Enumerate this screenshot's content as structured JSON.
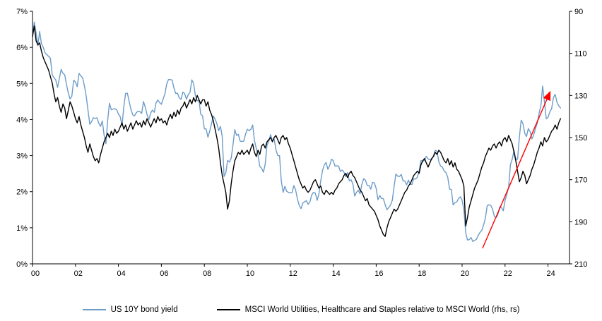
{
  "chart_data": {
    "type": "line",
    "title": "",
    "background": "#ffffff",
    "x_start_year": 2000,
    "x_step_years": 0.0833333,
    "x_axis": {
      "min": 2000,
      "max": 2025,
      "tick_values": [
        2000,
        2002,
        2004,
        2006,
        2008,
        2010,
        2012,
        2014,
        2016,
        2018,
        2020,
        2022,
        2024
      ],
      "tick_labels": [
        "00",
        "02",
        "04",
        "06",
        "08",
        "10",
        "12",
        "14",
        "16",
        "18",
        "20",
        "22",
        "24"
      ]
    },
    "left_axis": {
      "min": 0,
      "max": 7,
      "tick_values": [
        0,
        1,
        2,
        3,
        4,
        5,
        6,
        7
      ],
      "tick_labels": [
        "0%",
        "1%",
        "2%",
        "3%",
        "4%",
        "5%",
        "6%",
        "7%"
      ]
    },
    "right_axis": {
      "min": 90,
      "max": 210,
      "reversed": true,
      "tick_values": [
        90,
        110,
        130,
        150,
        170,
        190,
        210
      ],
      "tick_labels": [
        "90",
        "110",
        "130",
        "150",
        "170",
        "190",
        "210"
      ]
    },
    "series": [
      {
        "name": "US 10Y bond yield",
        "axis": "left",
        "color": "#6d9cc9",
        "values": [
          6.3,
          6.7,
          6.4,
          6.05,
          6.44,
          6.1,
          6.0,
          5.85,
          5.8,
          5.75,
          5.7,
          5.24,
          5.16,
          5.1,
          4.89,
          5.14,
          5.39,
          5.28,
          5.24,
          4.97,
          4.73,
          4.57,
          4.65,
          5.09,
          5.04,
          4.91,
          5.28,
          5.21,
          5.16,
          4.93,
          4.65,
          4.26,
          3.87,
          3.94,
          4.05,
          4.03,
          4.05,
          3.9,
          3.81,
          3.96,
          3.57,
          3.33,
          3.98,
          4.45,
          4.27,
          4.29,
          4.3,
          4.27,
          4.15,
          4.08,
          3.83,
          4.35,
          4.72,
          4.73,
          4.5,
          4.28,
          4.13,
          4.1,
          4.19,
          4.23,
          4.22,
          4.17,
          4.5,
          4.34,
          4.14,
          4.0,
          4.18,
          4.26,
          4.2,
          4.46,
          4.54,
          4.47,
          4.42,
          4.57,
          4.72,
          4.99,
          5.11,
          5.11,
          5.09,
          4.88,
          4.72,
          4.73,
          4.6,
          4.56,
          4.76,
          4.72,
          4.56,
          4.69,
          4.75,
          5.1,
          5.0,
          4.67,
          4.52,
          4.53,
          4.15,
          4.1,
          3.74,
          3.74,
          3.51,
          3.68,
          3.88,
          4.1,
          4.01,
          3.89,
          3.69,
          3.81,
          3.53,
          2.42,
          2.52,
          2.87,
          2.82,
          2.93,
          3.29,
          3.72,
          3.56,
          3.59,
          3.4,
          3.39,
          3.4,
          3.59,
          3.73,
          3.69,
          3.73,
          3.85,
          3.42,
          3.2,
          3.01,
          2.7,
          2.65,
          2.54,
          2.76,
          3.29,
          3.39,
          3.58,
          3.41,
          3.46,
          3.17,
          3.0,
          3.0,
          2.3,
          1.98,
          2.15,
          2.01,
          1.98,
          1.97,
          1.97,
          2.17,
          2.05,
          1.8,
          1.62,
          1.53,
          1.68,
          1.72,
          1.75,
          1.65,
          1.72,
          1.91,
          1.98,
          1.96,
          1.76,
          1.93,
          2.3,
          2.58,
          2.74,
          2.81,
          2.62,
          2.72,
          2.9,
          2.86,
          2.71,
          2.72,
          2.71,
          2.56,
          2.6,
          2.54,
          2.42,
          2.53,
          2.3,
          2.33,
          2.21,
          1.88,
          1.98,
          2.04,
          1.94,
          2.2,
          2.36,
          2.32,
          2.17,
          2.17,
          2.07,
          2.26,
          2.24,
          2.09,
          1.78,
          1.89,
          1.81,
          1.81,
          1.64,
          1.5,
          1.56,
          1.63,
          1.76,
          2.14,
          2.49,
          2.43,
          2.42,
          2.48,
          2.3,
          2.3,
          2.19,
          2.32,
          2.21,
          2.2,
          2.36,
          2.35,
          2.4,
          2.58,
          2.86,
          2.84,
          2.87,
          2.98,
          2.91,
          2.89,
          2.89,
          3.0,
          3.15,
          3.12,
          2.83,
          2.71,
          2.68,
          2.57,
          2.53,
          2.4,
          2.07,
          2.06,
          1.63,
          1.7,
          1.71,
          1.81,
          1.86,
          1.76,
          1.5,
          0.87,
          0.66,
          0.67,
          0.73,
          0.62,
          0.65,
          0.68,
          0.79,
          0.87,
          0.93,
          1.08,
          1.26,
          1.61,
          1.64,
          1.62,
          1.52,
          1.32,
          1.28,
          1.37,
          1.58,
          1.56,
          1.47,
          1.76,
          1.93,
          2.13,
          2.75,
          2.9,
          3.14,
          2.9,
          2.9,
          3.52,
          3.98,
          3.89,
          3.62,
          3.53,
          3.75,
          3.66,
          3.46,
          3.57,
          3.75,
          3.9,
          4.17,
          4.38,
          4.93,
          4.5,
          4.02,
          4.06,
          4.21,
          4.3,
          4.6,
          4.7,
          4.48,
          4.38,
          4.32
        ]
      },
      {
        "name": "MSCI World Utilities, Healthcare and Staples relative to MSCI World (rhs, rs)",
        "axis": "right",
        "color": "#000000",
        "values": [
          102,
          97,
          104,
          106,
          105,
          109,
          112,
          114,
          116,
          118,
          121,
          124,
          129,
          133,
          131,
          135,
          138,
          134,
          136,
          141,
          137,
          133,
          135,
          138,
          141,
          143,
          140,
          144,
          147,
          150,
          154,
          157,
          153,
          156,
          159,
          161,
          160,
          162,
          158,
          155,
          152,
          150,
          148,
          150,
          147,
          149,
          146,
          148,
          147,
          145,
          143,
          146,
          144,
          147,
          145,
          143,
          146,
          144,
          142,
          144,
          143,
          145,
          142,
          144,
          141,
          143,
          145,
          143,
          141,
          143,
          140,
          142,
          141,
          143,
          142,
          144,
          141,
          139,
          141,
          138,
          140,
          137,
          139,
          136,
          135,
          133,
          136,
          134,
          132,
          134,
          131,
          133,
          130,
          132,
          134,
          132,
          132,
          135,
          133,
          137,
          139,
          142,
          146,
          150,
          155,
          162,
          168,
          172,
          176,
          184,
          180,
          172,
          166,
          161,
          159,
          157,
          158,
          156,
          158,
          157,
          156,
          158,
          155,
          153,
          157,
          159,
          156,
          158,
          154,
          153,
          155,
          152,
          151,
          150,
          152,
          150,
          149,
          151,
          153,
          150,
          149,
          151,
          150,
          153,
          155,
          158,
          161,
          164,
          167,
          170,
          172,
          174,
          173,
          175,
          176,
          175,
          173,
          171,
          170,
          172,
          174,
          173,
          176,
          177,
          175,
          176,
          177,
          176,
          177,
          175,
          174,
          172,
          171,
          170,
          168,
          167,
          169,
          167,
          166,
          168,
          169,
          171,
          173,
          175,
          176,
          178,
          180,
          179,
          182,
          183,
          184,
          185,
          187,
          189,
          192,
          194,
          196,
          197,
          193,
          190,
          188,
          186,
          184,
          185,
          184,
          182,
          180,
          178,
          176,
          175,
          173,
          172,
          170,
          168,
          167,
          166,
          167,
          163,
          161,
          160,
          162,
          164,
          162,
          160,
          159,
          157,
          158,
          156,
          157,
          159,
          161,
          162,
          160,
          163,
          161,
          164,
          162,
          165,
          166,
          168,
          170,
          173,
          192,
          188,
          183,
          180,
          177,
          174,
          172,
          170,
          167,
          164,
          162,
          159,
          157,
          155,
          156,
          154,
          153,
          155,
          153,
          152,
          154,
          151,
          150,
          152,
          149,
          151,
          153,
          157,
          161,
          166,
          171,
          169,
          166,
          168,
          172,
          170,
          168,
          165,
          163,
          160,
          157,
          155,
          152,
          154,
          150,
          152,
          151,
          149,
          147,
          146,
          144,
          146,
          143,
          141
        ]
      }
    ],
    "annotation_arrow": {
      "type": "arrow",
      "color": "#ff0000",
      "from": {
        "x": 2020.95,
        "y_left": 0.43
      },
      "to": {
        "x": 2024.1,
        "y_left": 4.77
      }
    },
    "legend_position": "bottom",
    "grid": false
  }
}
